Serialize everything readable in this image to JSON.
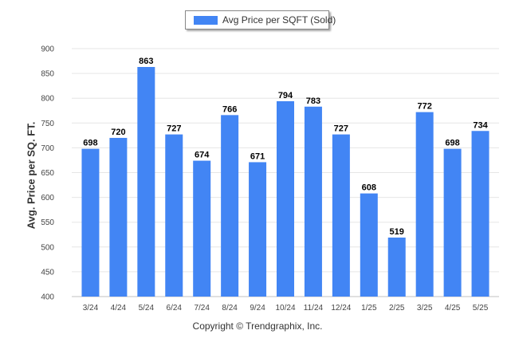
{
  "legend": {
    "label": "Avg Price per SQFT (Sold)"
  },
  "copyright": "Copyright © Trendgraphix, Inc.",
  "colors": {
    "bar": "#4285f4",
    "grid": "#e6e6e6",
    "axis": "#c0c0c0",
    "tick_text": "#444444",
    "value_text": "#000000"
  },
  "chart_data": {
    "type": "bar",
    "categories": [
      "3/24",
      "4/24",
      "5/24",
      "6/24",
      "7/24",
      "8/24",
      "9/24",
      "10/24",
      "11/24",
      "12/24",
      "1/25",
      "2/25",
      "3/25",
      "4/25",
      "5/25"
    ],
    "series": [
      {
        "name": "Avg Price per SQFT (Sold)",
        "values": [
          698,
          720,
          863,
          727,
          674,
          766,
          671,
          794,
          783,
          727,
          608,
          519,
          772,
          698,
          734
        ]
      }
    ],
    "ylabel": "Avg. Price per SQ. FT.",
    "xlabel": "",
    "ylim": [
      400,
      900
    ],
    "yticks": [
      400,
      450,
      500,
      550,
      600,
      650,
      700,
      750,
      800,
      850,
      900
    ],
    "grid": true,
    "data_labels": true,
    "legend_position": "top-center"
  }
}
